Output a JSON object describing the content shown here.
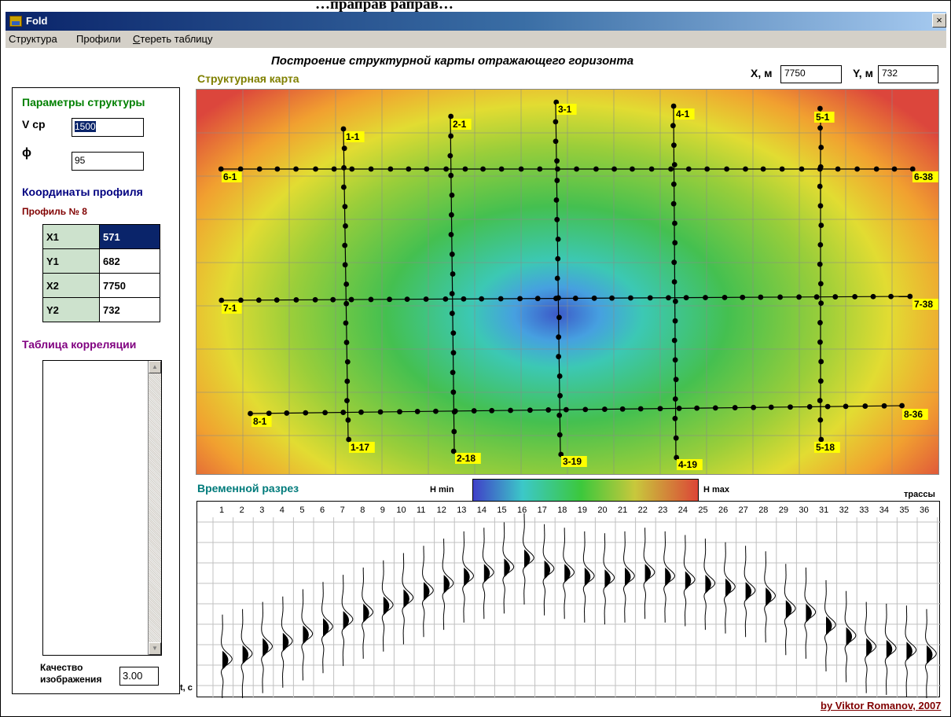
{
  "page_heading": "…праправ раправ…",
  "window": {
    "title": "Fold",
    "close_glyph": "×"
  },
  "menu": {
    "items": [
      {
        "label": "Структура"
      },
      {
        "label": "Профили"
      },
      {
        "label_prefix": "С",
        "label_rest": "тереть таблицу"
      }
    ]
  },
  "main_title": "Построение структурной карты отражающего горизонта",
  "map_label": "Структурная карта",
  "cursor": {
    "x_label": "X, м",
    "x_value": "7750",
    "y_label": "Y, м",
    "y_value": "732"
  },
  "left_panel": {
    "params_title": "Параметры структуры",
    "vcp_label": "V ср",
    "vcp_value": "1500",
    "phi_label": "ϕ",
    "phi_value": "95",
    "coords_title": "Координаты профиля",
    "profile_label": "Профиль № 8",
    "coords": [
      {
        "key": "X1",
        "value": "571"
      },
      {
        "key": "Y1",
        "value": "682"
      },
      {
        "key": "X2",
        "value": "7750"
      },
      {
        "key": "Y2",
        "value": "732"
      }
    ],
    "corr_title": "Таблица корреляции",
    "quality_label_1": "Качество",
    "quality_label_2": "изображения",
    "quality_value": "3.00"
  },
  "section": {
    "title": "Временной разрез",
    "hmin": "H min",
    "hmax": "H max",
    "traces_label": "трассы",
    "time_label": "t, c",
    "trace_numbers": [
      "1",
      "2",
      "3",
      "4",
      "5",
      "6",
      "7",
      "8",
      "9",
      "10",
      "11",
      "12",
      "13",
      "14",
      "15",
      "16",
      "17",
      "18",
      "19",
      "20",
      "21",
      "22",
      "23",
      "24",
      "25",
      "26",
      "27",
      "28",
      "29",
      "30",
      "31",
      "32",
      "33",
      "34",
      "35",
      "36"
    ],
    "horizon_time_fraction": [
      0.79,
      0.76,
      0.72,
      0.69,
      0.65,
      0.61,
      0.57,
      0.53,
      0.49,
      0.45,
      0.41,
      0.37,
      0.33,
      0.31,
      0.28,
      0.23,
      0.29,
      0.31,
      0.33,
      0.34,
      0.33,
      0.31,
      0.33,
      0.35,
      0.37,
      0.39,
      0.41,
      0.44,
      0.51,
      0.53,
      0.6,
      0.66,
      0.72,
      0.73,
      0.74,
      0.76
    ]
  },
  "profiles": {
    "start_labels": [
      "1-1",
      "2-1",
      "3-1",
      "4-1",
      "5-1",
      "6-1",
      "7-1",
      "8-1"
    ],
    "end_labels": [
      "1-17",
      "2-18",
      "3-19",
      "4-19",
      "5-18",
      "6-38",
      "7-38",
      "8-36"
    ]
  },
  "credit": "by Viktor Romanov, 2007",
  "colors": {
    "map_title": "#7f8000",
    "section_title": "#007b7b",
    "params_title": "#008000",
    "coords_title": "#000080",
    "profile_label": "#800000",
    "corr_title": "#800080",
    "credit": "#800000"
  }
}
